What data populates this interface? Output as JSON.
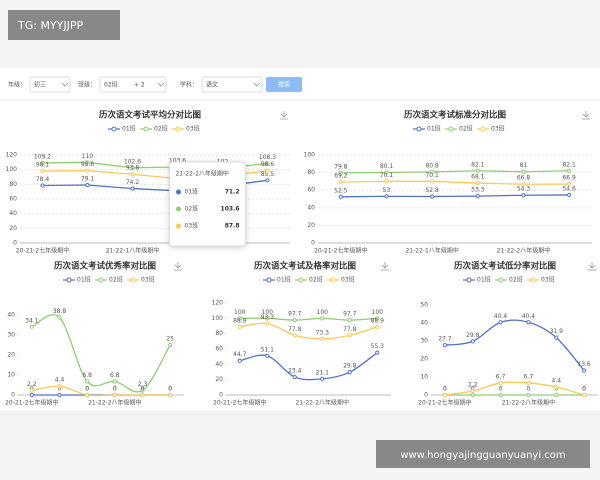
{
  "watermark_top": "TG: MYYJJPP",
  "watermark_bottom": "www.hongyajingguanyuanyi.com",
  "filters": [
    {
      "label": "年级：",
      "value": "初三"
    },
    {
      "label": "班级：",
      "value": "02班",
      "extra": "+ 2"
    },
    {
      "label": "学科：",
      "value": "语文"
    }
  ],
  "search_button": "搜索",
  "chart_data": [
    {
      "type": "line",
      "title": "历次语文考试平均分对比图",
      "categories": [
        "20-21-2七年级期中",
        null,
        "21-22-1八年级期中",
        "21-22-2八年级期中",
        null,
        null
      ],
      "ylim": [
        0,
        120
      ],
      "yticks": [
        0,
        20,
        40,
        60,
        80,
        100,
        120
      ],
      "grid": true,
      "tooltip": 3,
      "series": [
        {
          "name": "01班",
          "color": "#5470c6",
          "values": [
            78.4,
            79.1,
            74.2,
            71.2,
            77.4,
            85.5
          ]
        },
        {
          "name": "02班",
          "color": "#91cc75",
          "values": [
            109.2,
            110,
            102.6,
            103.6,
            102,
            108.3
          ]
        },
        {
          "name": "03班",
          "color": "#fac858",
          "values": [
            98.1,
            98.6,
            93.8,
            87.8,
            90.7,
            98.6
          ]
        }
      ]
    },
    {
      "type": "line",
      "title": "历次语文考试标准分对比图",
      "categories": [
        "20-21-2七年级期中",
        null,
        "21-22-1八年级期中",
        null,
        "21-22-2八年级期中",
        null
      ],
      "ylim": [
        0,
        100
      ],
      "yticks": [
        0,
        20,
        40,
        60,
        80,
        100
      ],
      "grid": true,
      "series": [
        {
          "name": "01班",
          "color": "#5470c6",
          "values": [
            52.5,
            53,
            52.8,
            53.3,
            54.3,
            54.6
          ]
        },
        {
          "name": "02班",
          "color": "#91cc75",
          "values": [
            79.8,
            80.1,
            80.8,
            82.1,
            81,
            82.1
          ]
        },
        {
          "name": "03班",
          "color": "#fac858",
          "values": [
            69.2,
            70.1,
            70.1,
            68.1,
            66.8,
            66.9
          ]
        }
      ]
    },
    {
      "type": "line",
      "smooth": true,
      "title": "历次语文考试优秀率对比图",
      "categories": [
        "20-21-2七年级期中",
        null,
        null,
        "21-22-2八年级期中",
        null,
        null
      ],
      "ylim": [
        0,
        40
      ],
      "yticks": [
        0,
        10,
        20,
        30,
        40
      ],
      "grid": false,
      "series": [
        {
          "name": "01班",
          "color": "#5470c6",
          "values": [
            0,
            0,
            0,
            0,
            0,
            0
          ]
        },
        {
          "name": "02班",
          "color": "#91cc75",
          "values": [
            34.1,
            38.8,
            6.8,
            6.8,
            2.3,
            25
          ]
        },
        {
          "name": "03班",
          "color": "#fac858",
          "values": [
            2.2,
            4.4,
            0,
            0,
            0,
            0
          ]
        }
      ]
    },
    {
      "type": "line",
      "smooth": true,
      "title": "历次语文考试及格率对比图",
      "categories": [
        "20-21-2七年级期中",
        null,
        null,
        "21-22-2八年级期中",
        null,
        null
      ],
      "ylim": [
        0,
        120
      ],
      "yticks": [
        0,
        20,
        40,
        60,
        80,
        100,
        120
      ],
      "grid": false,
      "series": [
        {
          "name": "01班",
          "color": "#5470c6",
          "values": [
            44.7,
            51.1,
            23.4,
            21.1,
            29.8,
            55.3
          ]
        },
        {
          "name": "02班",
          "color": "#91cc75",
          "values": [
            100,
            100,
            97.7,
            100,
            97.7,
            100
          ]
        },
        {
          "name": "03班",
          "color": "#fac858",
          "values": [
            88.9,
            93.3,
            77.8,
            73.3,
            77.8,
            88.9
          ]
        }
      ]
    },
    {
      "type": "line",
      "smooth": true,
      "title": "历次语文考试低分率对比图",
      "categories": [
        "20-21-2七年级期中",
        null,
        null,
        "21-22-2八年级期中",
        null,
        null
      ],
      "ylim": [
        0,
        50
      ],
      "yticks": [
        0,
        10,
        20,
        30,
        40,
        50
      ],
      "grid": false,
      "series": [
        {
          "name": "01班",
          "color": "#5470c6",
          "values": [
            27.7,
            29.8,
            40.4,
            40.4,
            31.9,
            13.6
          ]
        },
        {
          "name": "02班",
          "color": "#91cc75",
          "values": [
            0,
            0,
            0,
            0,
            0,
            0
          ]
        },
        {
          "name": "03班",
          "color": "#fac858",
          "values": [
            0,
            2.2,
            6.7,
            6.7,
            4.4,
            0
          ]
        }
      ]
    }
  ]
}
